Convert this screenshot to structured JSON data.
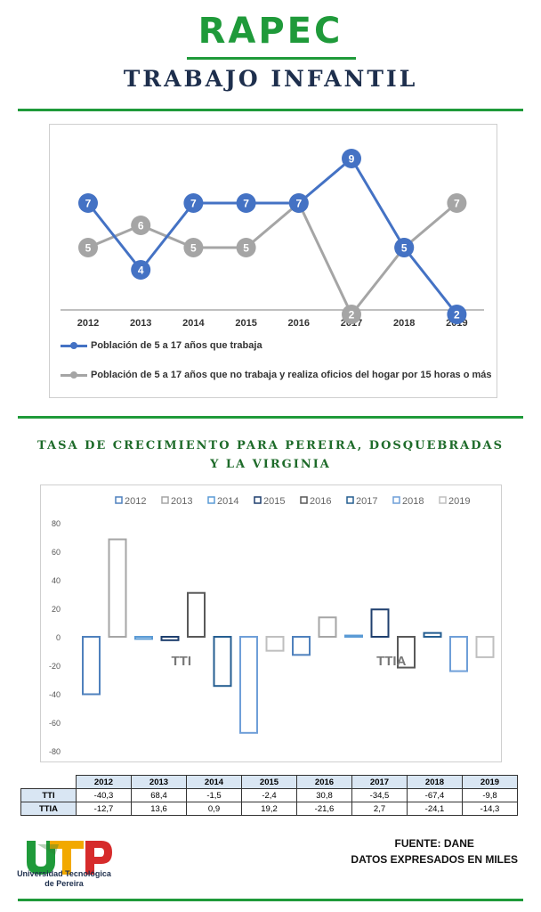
{
  "header": {
    "title": "RAPEC",
    "subtitle": "TRABAJO INFANTIL"
  },
  "colors": {
    "green": "#1f9a3a",
    "navy": "#1e2f4d",
    "blue": "#4472c4",
    "gray": "#a5a5a5"
  },
  "chart_data": [
    {
      "type": "line",
      "categories": [
        "2012",
        "2013",
        "2014",
        "2015",
        "2016",
        "2017",
        "2018",
        "2019"
      ],
      "series": [
        {
          "name": "Población de 5 a 17 años que trabaja",
          "values": [
            7,
            4,
            7,
            7,
            7,
            9,
            5,
            2
          ],
          "color": "#4472c4"
        },
        {
          "name": "Población de 5 a 17 años que no trabaja y realiza oficios del hogar por 15 horas o más",
          "values": [
            5,
            6,
            5,
            5,
            7,
            2,
            5,
            7
          ],
          "color": "#a5a5a5"
        }
      ],
      "data_labels": true,
      "legend": "bottom"
    },
    {
      "type": "bar",
      "title": "TASA DE CRECIMIENTO PARA PEREIRA, DOSQUEBRADAS Y LA VIRGINIA",
      "categories": [
        "TTI",
        "TTIA"
      ],
      "series": [
        {
          "name": "2012",
          "values": [
            -40.3,
            -12.7
          ],
          "color": "#4f81bd"
        },
        {
          "name": "2013",
          "values": [
            68.4,
            13.6
          ],
          "color": "#a5a5a5"
        },
        {
          "name": "2014",
          "values": [
            -1.5,
            0.9
          ],
          "color": "#5b9bd5"
        },
        {
          "name": "2015",
          "values": [
            -2.4,
            19.2
          ],
          "color": "#1f3f6e"
        },
        {
          "name": "2016",
          "values": [
            30.8,
            -21.6
          ],
          "color": "#595959"
        },
        {
          "name": "2017",
          "values": [
            -34.5,
            2.7
          ],
          "color": "#255e91"
        },
        {
          "name": "2018",
          "values": [
            -67.4,
            -24.1
          ],
          "color": "#6f9fd8"
        },
        {
          "name": "2019",
          "values": [
            -9.8,
            -14.3
          ],
          "color": "#bfbfbf"
        }
      ],
      "yticks": [
        "80",
        "60",
        "40",
        "20",
        "0",
        "-20",
        "-40",
        "-60",
        "-80"
      ],
      "ylim": [
        -80,
        80
      ],
      "legend": "top"
    }
  ],
  "table": {
    "headers": [
      "2012",
      "2013",
      "2014",
      "2015",
      "2016",
      "2017",
      "2018",
      "2019"
    ],
    "rows": [
      {
        "label": "TTI",
        "values": [
          "-40,3",
          "68,4",
          "-1,5",
          "-2,4",
          "30,8",
          "-34,5",
          "-67,4",
          "-9,8"
        ]
      },
      {
        "label": "TTIA",
        "values": [
          "-12,7",
          "13,6",
          "0,9",
          "19,2",
          "-21,6",
          "2,7",
          "-24,1",
          "-14,3"
        ]
      }
    ]
  },
  "logo": {
    "name": "Universidad Tecnológica de Pereira"
  },
  "source": {
    "line1": "FUENTE: DANE",
    "line2": "DATOS EXPRESADOS EN MILES"
  }
}
